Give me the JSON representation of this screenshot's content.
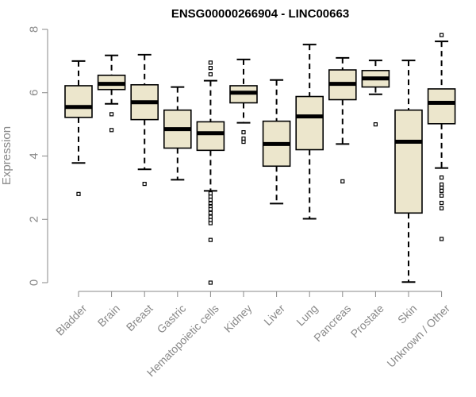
{
  "chart_data": {
    "type": "boxplot",
    "title": "ENSG00000266904 - LINC00663",
    "xlabel": "",
    "ylabel": "Expression",
    "ylim": [
      0,
      8
    ],
    "yticks": [
      "0",
      "2",
      "4",
      "6",
      "8"
    ],
    "categories": [
      "Bladder",
      "Brain",
      "Breast",
      "Gastric",
      "Hematopoietic cells",
      "Kidney",
      "Liver",
      "Lung",
      "Pancreas",
      "Prostate",
      "Skin",
      "Unknown / Other"
    ],
    "box_fill": "#ece6cc",
    "series": [
      {
        "category": "Bladder",
        "whisker_low": 3.78,
        "q1": 5.22,
        "median": 5.55,
        "q3": 6.22,
        "whisker_high": 7.0,
        "outliers": [
          2.8
        ]
      },
      {
        "category": "Brain",
        "whisker_low": 5.65,
        "q1": 6.1,
        "median": 6.28,
        "q3": 6.55,
        "whisker_high": 7.18,
        "outliers": [
          5.32,
          4.82
        ]
      },
      {
        "category": "Breast",
        "whisker_low": 3.58,
        "q1": 5.15,
        "median": 5.7,
        "q3": 6.25,
        "whisker_high": 7.2,
        "outliers": [
          3.12
        ]
      },
      {
        "category": "Gastric",
        "whisker_low": 3.25,
        "q1": 4.25,
        "median": 4.85,
        "q3": 5.45,
        "whisker_high": 6.18,
        "outliers": []
      },
      {
        "category": "Hematopoietic cells",
        "whisker_low": 2.9,
        "q1": 4.18,
        "median": 4.72,
        "q3": 5.08,
        "whisker_high": 6.38,
        "outliers": [
          6.95,
          6.78,
          6.58,
          2.82,
          2.72,
          2.62,
          2.5,
          2.42,
          2.32,
          2.2,
          2.08,
          1.98,
          1.88,
          1.35,
          0.0
        ]
      },
      {
        "category": "Kidney",
        "whisker_low": 5.05,
        "q1": 5.68,
        "median": 6.0,
        "q3": 6.22,
        "whisker_high": 7.05,
        "outliers": [
          4.75,
          4.55,
          4.45
        ]
      },
      {
        "category": "Liver",
        "whisker_low": 2.5,
        "q1": 3.68,
        "median": 4.38,
        "q3": 5.1,
        "whisker_high": 6.4,
        "outliers": []
      },
      {
        "category": "Lung",
        "whisker_low": 2.02,
        "q1": 4.2,
        "median": 5.25,
        "q3": 5.88,
        "whisker_high": 7.52,
        "outliers": []
      },
      {
        "category": "Pancreas",
        "whisker_low": 4.38,
        "q1": 5.78,
        "median": 6.28,
        "q3": 6.72,
        "whisker_high": 7.1,
        "outliers": [
          3.2
        ]
      },
      {
        "category": "Prostate",
        "whisker_low": 5.95,
        "q1": 6.18,
        "median": 6.45,
        "q3": 6.7,
        "whisker_high": 7.02,
        "outliers": [
          5.0
        ]
      },
      {
        "category": "Skin",
        "whisker_low": 0.02,
        "q1": 2.2,
        "median": 4.45,
        "q3": 5.45,
        "whisker_high": 7.02,
        "outliers": []
      },
      {
        "category": "Unknown / Other",
        "whisker_low": 3.62,
        "q1": 5.02,
        "median": 5.68,
        "q3": 6.12,
        "whisker_high": 7.62,
        "outliers": [
          7.82,
          3.32,
          3.1,
          3.0,
          2.9,
          2.75,
          2.52,
          2.35,
          1.38
        ]
      }
    ]
  }
}
